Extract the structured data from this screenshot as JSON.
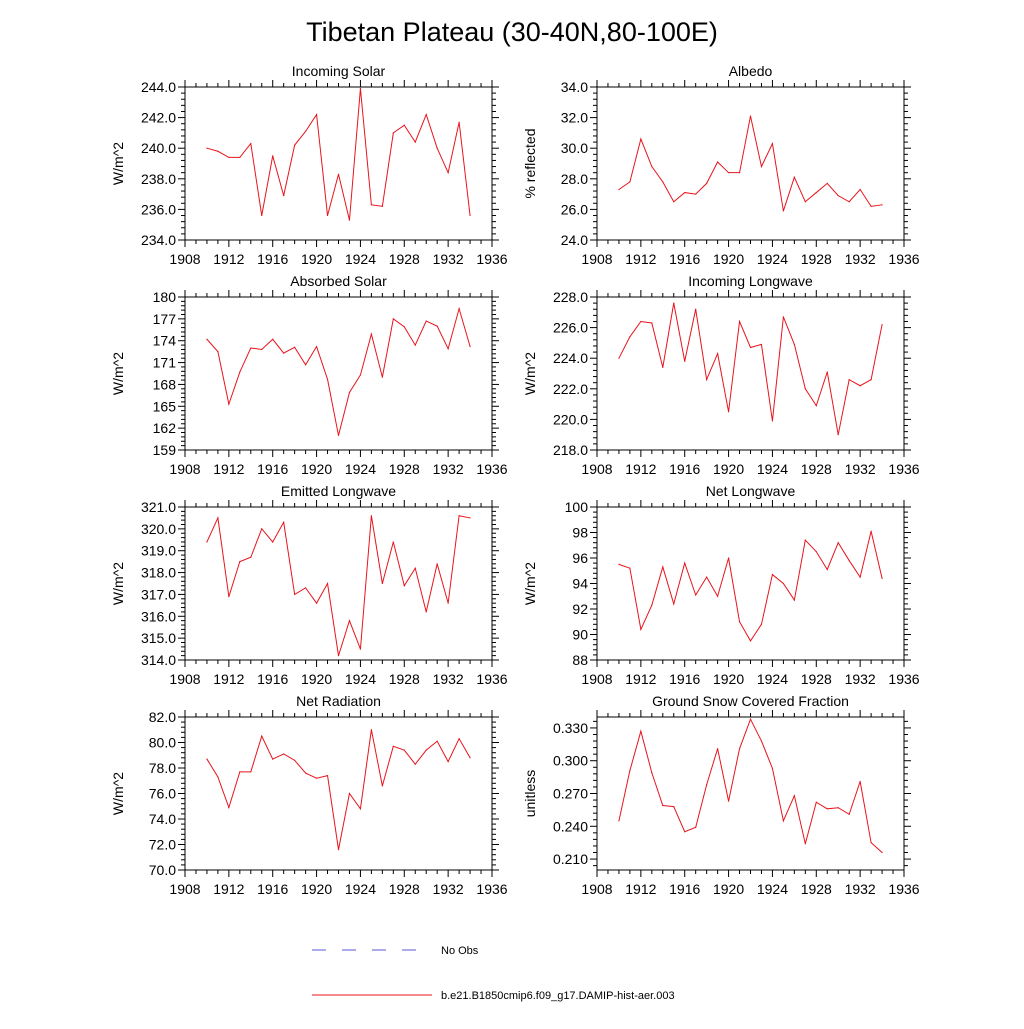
{
  "figure": {
    "title": "Tibetan Plateau (30-40N,80-100E)",
    "colors": {
      "model": "#e8141c",
      "obs": "#5a5ad8",
      "axis": "#000000"
    },
    "legend": [
      {
        "label": "No Obs",
        "style": "dashed",
        "color": "#5a5ad8"
      },
      {
        "label": "b.e21.B1850cmip6.f09_g17.DAMIP-hist-aer.003",
        "style": "solid",
        "color": "#e8141c"
      }
    ]
  },
  "chart_data": [
    {
      "type": "line",
      "title": "Incoming Solar",
      "ylabel": "W/m^2",
      "xlim": [
        1908,
        1936
      ],
      "xticks": [
        "1908",
        "1912",
        "1916",
        "1920",
        "1924",
        "1928",
        "1932",
        "1936"
      ],
      "ylim": [
        234,
        244
      ],
      "yticks": [
        "234.0",
        "236.0",
        "238.0",
        "240.0",
        "242.0",
        "244.0"
      ],
      "x": [
        1910,
        1911,
        1912,
        1913,
        1914,
        1915,
        1916,
        1917,
        1918,
        1919,
        1920,
        1921,
        1922,
        1923,
        1924,
        1925,
        1926,
        1927,
        1928,
        1929,
        1930,
        1931,
        1932,
        1933,
        1934
      ],
      "series": [
        {
          "values": [
            240.0,
            239.8,
            239.4,
            239.4,
            240.3,
            235.6,
            239.5,
            236.9,
            240.2,
            241.1,
            242.2,
            235.6,
            238.3,
            235.3,
            243.9,
            236.3,
            236.2,
            241.0,
            241.5,
            240.4,
            242.2,
            240.0,
            238.4,
            241.7,
            235.6
          ]
        }
      ]
    },
    {
      "type": "line",
      "title": "Albedo",
      "ylabel": "% reflected",
      "xlim": [
        1908,
        1936
      ],
      "xticks": [
        "1908",
        "1912",
        "1916",
        "1920",
        "1924",
        "1928",
        "1932",
        "1936"
      ],
      "ylim": [
        24,
        34
      ],
      "yticks": [
        "24.0",
        "26.0",
        "28.0",
        "30.0",
        "32.0",
        "34.0"
      ],
      "x": [
        1910,
        1911,
        1912,
        1913,
        1914,
        1915,
        1916,
        1917,
        1918,
        1919,
        1920,
        1921,
        1922,
        1923,
        1924,
        1925,
        1926,
        1927,
        1928,
        1929,
        1930,
        1931,
        1932,
        1933,
        1934
      ],
      "series": [
        {
          "values": [
            27.3,
            27.8,
            30.6,
            28.8,
            27.8,
            26.5,
            27.1,
            27.0,
            27.7,
            29.1,
            28.4,
            28.4,
            32.1,
            28.8,
            30.3,
            25.9,
            28.1,
            26.5,
            27.1,
            27.7,
            26.9,
            26.5,
            27.3,
            26.2,
            26.3
          ]
        }
      ]
    },
    {
      "type": "line",
      "title": "Absorbed Solar",
      "ylabel": "W/m^2",
      "xlim": [
        1908,
        1936
      ],
      "xticks": [
        "1908",
        "1912",
        "1916",
        "1920",
        "1924",
        "1928",
        "1932",
        "1936"
      ],
      "ylim": [
        159,
        180
      ],
      "yticks": [
        "159",
        "162",
        "165",
        "168",
        "171",
        "174",
        "177",
        "180"
      ],
      "x": [
        1910,
        1911,
        1912,
        1913,
        1914,
        1915,
        1916,
        1917,
        1918,
        1919,
        1920,
        1921,
        1922,
        1923,
        1924,
        1925,
        1926,
        1927,
        1928,
        1929,
        1930,
        1931,
        1932,
        1933,
        1934
      ],
      "series": [
        {
          "values": [
            174.2,
            172.5,
            165.3,
            169.7,
            173.0,
            172.8,
            174.2,
            172.3,
            173.1,
            170.7,
            173.2,
            168.7,
            161.0,
            166.9,
            169.3,
            174.9,
            169.0,
            177.0,
            175.9,
            173.4,
            176.7,
            176.0,
            172.9,
            178.4,
            173.2
          ]
        }
      ]
    },
    {
      "type": "line",
      "title": "Incoming Longwave",
      "ylabel": "W/m^2",
      "xlim": [
        1908,
        1936
      ],
      "xticks": [
        "1908",
        "1912",
        "1916",
        "1920",
        "1924",
        "1928",
        "1932",
        "1936"
      ],
      "ylim": [
        218,
        228
      ],
      "yticks": [
        "218.0",
        "220.0",
        "222.0",
        "224.0",
        "226.0",
        "228.0"
      ],
      "x": [
        1910,
        1911,
        1912,
        1913,
        1914,
        1915,
        1916,
        1917,
        1918,
        1919,
        1920,
        1921,
        1922,
        1923,
        1924,
        1925,
        1926,
        1927,
        1928,
        1929,
        1930,
        1931,
        1932,
        1933,
        1934
      ],
      "series": [
        {
          "values": [
            224.0,
            225.4,
            226.4,
            226.3,
            223.4,
            227.6,
            223.8,
            227.2,
            222.6,
            224.3,
            220.5,
            226.4,
            224.7,
            224.9,
            219.9,
            226.7,
            224.9,
            222.0,
            220.9,
            223.1,
            219.0,
            222.6,
            222.2,
            222.6,
            226.2
          ]
        }
      ]
    },
    {
      "type": "line",
      "title": "Emitted Longwave",
      "ylabel": "W/m^2",
      "xlim": [
        1908,
        1936
      ],
      "xticks": [
        "1908",
        "1912",
        "1916",
        "1920",
        "1924",
        "1928",
        "1932",
        "1936"
      ],
      "ylim": [
        314,
        321
      ],
      "yticks": [
        "314.0",
        "315.0",
        "316.0",
        "317.0",
        "318.0",
        "319.0",
        "320.0",
        "321.0"
      ],
      "x": [
        1910,
        1911,
        1912,
        1913,
        1914,
        1915,
        1916,
        1917,
        1918,
        1919,
        1920,
        1921,
        1922,
        1923,
        1924,
        1925,
        1926,
        1927,
        1928,
        1929,
        1930,
        1931,
        1932,
        1933,
        1934
      ],
      "series": [
        {
          "values": [
            319.4,
            320.5,
            316.9,
            318.5,
            318.7,
            320.0,
            319.4,
            320.3,
            317.0,
            317.3,
            316.6,
            317.5,
            314.2,
            315.8,
            314.5,
            320.6,
            317.5,
            319.4,
            317.4,
            318.2,
            316.2,
            318.4,
            316.6,
            320.6,
            320.5
          ]
        }
      ]
    },
    {
      "type": "line",
      "title": "Net Longwave",
      "ylabel": "W/m^2",
      "xlim": [
        1908,
        1936
      ],
      "xticks": [
        "1908",
        "1912",
        "1916",
        "1920",
        "1924",
        "1928",
        "1932",
        "1936"
      ],
      "ylim": [
        88,
        100
      ],
      "yticks": [
        "88",
        "90",
        "92",
        "94",
        "96",
        "98",
        "100"
      ],
      "x": [
        1910,
        1911,
        1912,
        1913,
        1914,
        1915,
        1916,
        1917,
        1918,
        1919,
        1920,
        1921,
        1922,
        1923,
        1924,
        1925,
        1926,
        1927,
        1928,
        1929,
        1930,
        1931,
        1932,
        1933,
        1934
      ],
      "series": [
        {
          "values": [
            95.5,
            95.2,
            90.4,
            92.3,
            95.3,
            92.4,
            95.6,
            93.1,
            94.5,
            93.0,
            96.0,
            91.0,
            89.5,
            90.8,
            94.7,
            94.0,
            92.7,
            97.4,
            96.5,
            95.1,
            97.2,
            95.8,
            94.5,
            98.1,
            94.4
          ]
        }
      ]
    },
    {
      "type": "line",
      "title": "Net Radiation",
      "ylabel": "W/m^2",
      "xlim": [
        1908,
        1936
      ],
      "xticks": [
        "1908",
        "1912",
        "1916",
        "1920",
        "1924",
        "1928",
        "1932",
        "1936"
      ],
      "ylim": [
        70,
        82
      ],
      "yticks": [
        "70.0",
        "72.0",
        "74.0",
        "76.0",
        "78.0",
        "80.0",
        "82.0"
      ],
      "x": [
        1910,
        1911,
        1912,
        1913,
        1914,
        1915,
        1916,
        1917,
        1918,
        1919,
        1920,
        1921,
        1922,
        1923,
        1924,
        1925,
        1926,
        1927,
        1928,
        1929,
        1930,
        1931,
        1932,
        1933,
        1934
      ],
      "series": [
        {
          "values": [
            78.7,
            77.3,
            74.9,
            77.7,
            77.7,
            80.5,
            78.7,
            79.1,
            78.6,
            77.6,
            77.2,
            77.4,
            71.6,
            76.0,
            74.8,
            81.0,
            76.6,
            79.7,
            79.4,
            78.3,
            79.4,
            80.1,
            78.5,
            80.3,
            78.8
          ]
        }
      ]
    },
    {
      "type": "line",
      "title": "Ground Snow Covered Fraction",
      "ylabel": "unitless",
      "xlim": [
        1908,
        1936
      ],
      "xticks": [
        "1908",
        "1912",
        "1916",
        "1920",
        "1924",
        "1928",
        "1932",
        "1936"
      ],
      "ylim": [
        0.2,
        0.34
      ],
      "yticks": [
        "0.210",
        "0.240",
        "0.270",
        "0.300",
        "0.330"
      ],
      "ytick_values": [
        0.21,
        0.24,
        0.27,
        0.3,
        0.33
      ],
      "x": [
        1910,
        1911,
        1912,
        1913,
        1914,
        1915,
        1916,
        1917,
        1918,
        1919,
        1920,
        1921,
        1922,
        1923,
        1924,
        1925,
        1926,
        1927,
        1928,
        1929,
        1930,
        1931,
        1932,
        1933,
        1934
      ],
      "series": [
        {
          "values": [
            0.245,
            0.291,
            0.327,
            0.289,
            0.259,
            0.258,
            0.235,
            0.239,
            0.278,
            0.311,
            0.263,
            0.311,
            0.338,
            0.318,
            0.293,
            0.245,
            0.268,
            0.224,
            0.262,
            0.256,
            0.257,
            0.251,
            0.281,
            0.225,
            0.216
          ]
        }
      ]
    }
  ]
}
